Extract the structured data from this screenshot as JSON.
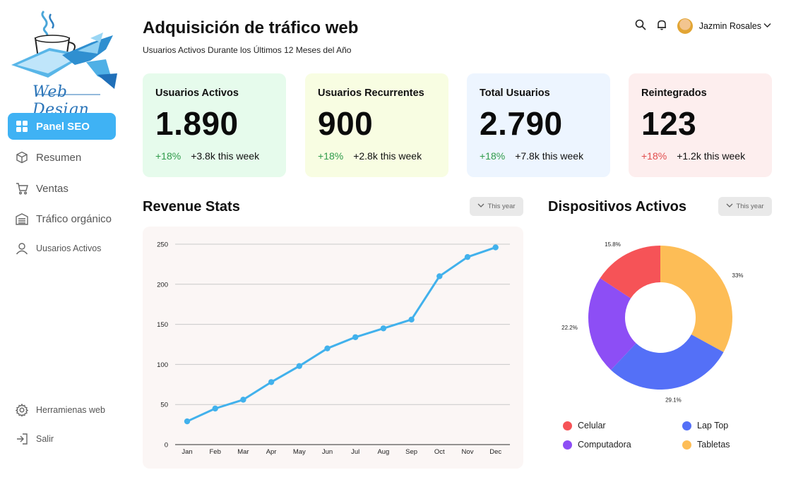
{
  "brand": {
    "logo_text": "Web Design"
  },
  "sidebar": {
    "items": [
      {
        "label": "Panel SEO",
        "icon": "grid-icon",
        "active": true
      },
      {
        "label": "Resumen",
        "icon": "box-icon"
      },
      {
        "label": "Ventas",
        "icon": "cart-icon"
      },
      {
        "label": "Tráfico orgánico",
        "icon": "building-icon"
      },
      {
        "label": "Uusarios Activos",
        "icon": "user-icon"
      }
    ],
    "bottom": [
      {
        "label": "Herramienas web",
        "icon": "gear-icon"
      },
      {
        "label": "Salir",
        "icon": "logout-icon"
      }
    ]
  },
  "header": {
    "title": "Adquisición de tráfico web",
    "subtitle": "Usuarios Activos Durante los Últimos 12 Meses del Año",
    "user_name": "Jazmin Rosales"
  },
  "cards": [
    {
      "label": "Usuarios Activos",
      "value": "1.890",
      "change": "+18%",
      "week": "+3.8k this week",
      "bg": "#e6fbec",
      "change_color": "#2f9b4a"
    },
    {
      "label": "Usuarios Recurrentes",
      "value": "900",
      "change": "+18%",
      "week": "+2.8k this week",
      "bg": "#f8fde2",
      "change_color": "#2f9b4a"
    },
    {
      "label": "Total Usuarios",
      "value": "2.790",
      "change": "+18%",
      "week": "+7.8k this week",
      "bg": "#edf5ff",
      "change_color": "#2f9b4a"
    },
    {
      "label": "Reintegrados",
      "value": "123",
      "change": "+18%",
      "week": "+1.2k this week",
      "bg": "#fdeeee",
      "change_color": "#e14d4d"
    }
  ],
  "revenue": {
    "title": "Revenue Stats",
    "filter": "This year"
  },
  "devices": {
    "title": "Dispositivos Activos",
    "filter": "This year"
  },
  "chart_data": [
    {
      "type": "line",
      "title": "Revenue Stats",
      "categories": [
        "Jan",
        "Feb",
        "Mar",
        "Apr",
        "May",
        "Jun",
        "Jul",
        "Aug",
        "Sep",
        "Oct",
        "Nov",
        "Dec"
      ],
      "values": [
        29,
        45,
        56,
        78,
        98,
        120,
        134,
        145,
        156,
        210,
        234,
        246
      ],
      "ylim": [
        0,
        250
      ],
      "yticks": [
        0,
        50,
        100,
        150,
        200,
        250
      ],
      "color": "#41b1ec"
    },
    {
      "type": "pie",
      "title": "Dispositivos Activos",
      "donut": true,
      "slices": [
        {
          "name": "Tabletas",
          "value": 33,
          "label": "33%",
          "color": "#fdbd56"
        },
        {
          "name": "Lap Top",
          "value": 29.1,
          "label": "29.1%",
          "color": "#5470f7"
        },
        {
          "name": "Computadora",
          "value": 22.2,
          "label": "22.2%",
          "color": "#8d4ef5"
        },
        {
          "name": "Celular",
          "value": 15.8,
          "label": "15.8%",
          "color": "#f65357"
        }
      ],
      "legend": [
        "Celular",
        "Lap Top",
        "Computadora",
        "Tabletas"
      ]
    }
  ]
}
